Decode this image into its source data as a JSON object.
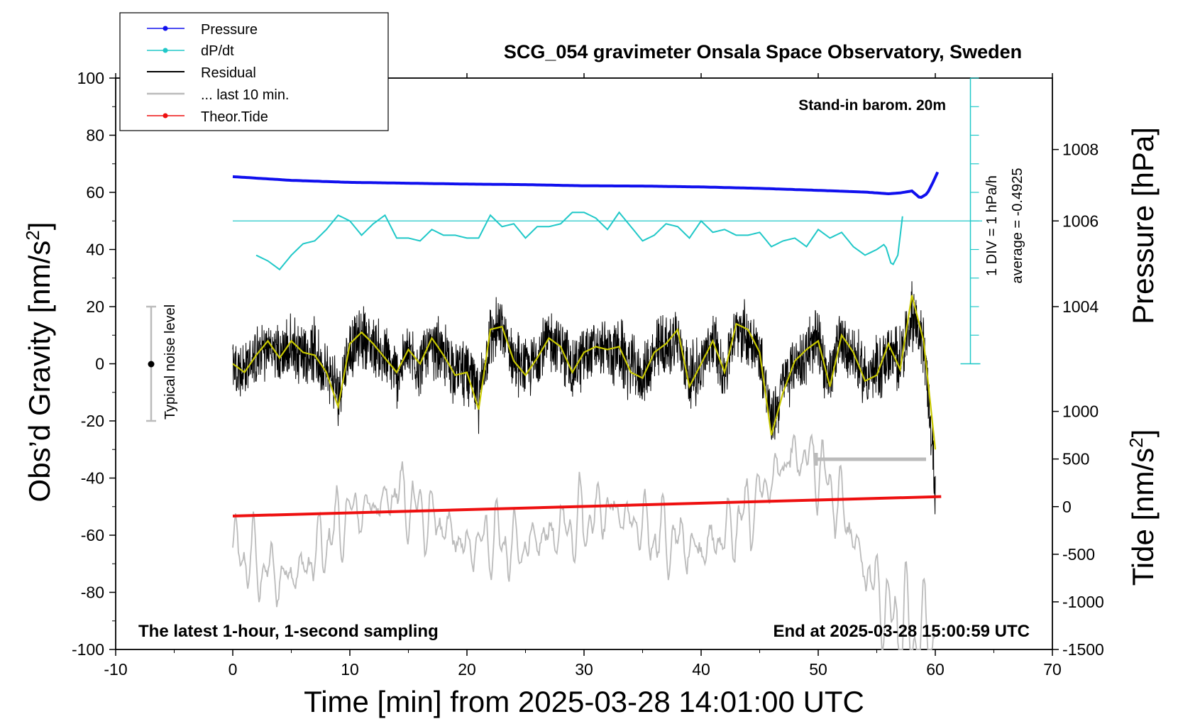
{
  "chart_data": {
    "type": "line",
    "title": "SCG_054 gravimeter Onsala Space Observatory, Sweden",
    "xlabel": "Time [min] from 2025-03-28 14:01:00 UTC",
    "ylabel_left": "Obs’d Gravity [nm/s²]",
    "ylabel_left_main": "Obs’d Gravity [nm/s",
    "ylabel_left_sup": "2",
    "ylabel_left_end": "]",
    "ylabel_pressure": "Pressure [hPa]",
    "ylabel_tide_main": "Tide [nm/s",
    "ylabel_tide_sup": "2",
    "ylabel_tide_end": "]",
    "xlim": [
      -10,
      70
    ],
    "ylim": [
      -100,
      100
    ],
    "xticks": [
      -10,
      0,
      10,
      20,
      30,
      40,
      50,
      60,
      70
    ],
    "yticks": [
      -100,
      -80,
      -60,
      -40,
      -20,
      0,
      20,
      40,
      60,
      80,
      100
    ],
    "pressure_ticks": [
      1004,
      1006,
      1008
    ],
    "pressure_ticks_gravity_pos": [
      20,
      50,
      75
    ],
    "tide_ticks": [
      -1500,
      -1000,
      -500,
      0,
      500,
      1000
    ],
    "tide_ticks_gravity_pos": [
      -100,
      -83.33,
      -66.67,
      -50,
      -33.33,
      -16.67
    ],
    "legend": {
      "position": "top-left",
      "entries": [
        {
          "label": "Pressure",
          "color": "#1010ee",
          "marker": true
        },
        {
          "label": "dP/dt",
          "color": "#20c8c8",
          "marker": true
        },
        {
          "label": "Residual",
          "color": "#000000",
          "marker": false
        },
        {
          "label": "... last 10 min.",
          "color": "#bbbbbb",
          "marker": false
        },
        {
          "label": "Theor.Tide",
          "color": "#ee1010",
          "marker": true
        }
      ]
    },
    "annotations": {
      "standin": "Stand-in barom. 20m",
      "latest": "The latest 1-hour, 1-second sampling",
      "end_at": "End at 2025-03-28 15:00:59 UTC",
      "noise": "Typical noise level",
      "div": "1 DIV = 1 hPa/h",
      "average": "average = -0.4925"
    },
    "series": [
      {
        "name": "Pressure",
        "color": "#1010ee",
        "x": [
          0,
          5,
          10,
          15,
          20,
          25,
          30,
          35,
          40,
          45,
          50,
          54,
          56,
          57,
          58,
          58.7,
          59.3,
          59.8,
          60.3
        ],
        "y": [
          65.5,
          64.2,
          63.5,
          63.2,
          62.9,
          62.7,
          62.3,
          62.2,
          61.9,
          61.4,
          60.7,
          60.1,
          59.5,
          59.8,
          60.5,
          58.0,
          59.5,
          63.5,
          68.0
        ]
      },
      {
        "name": "dP/dt",
        "color": "#20c8c8",
        "zero_line": 50,
        "x": [
          2,
          3,
          4,
          5,
          6,
          7,
          8,
          9,
          10,
          11,
          12,
          13,
          14,
          15,
          16,
          17,
          18,
          19,
          20,
          21,
          22,
          23,
          24,
          25,
          26,
          27,
          28,
          29,
          30,
          31,
          32,
          33,
          34,
          35,
          36,
          37,
          38,
          39,
          40,
          41,
          42,
          43,
          44,
          45,
          46,
          47,
          48,
          49,
          50,
          51,
          52,
          53,
          54,
          55,
          55.7,
          56.3,
          56.8,
          57.3
        ],
        "y": [
          38,
          36,
          33,
          38,
          42,
          43,
          47,
          52,
          50,
          45,
          49,
          52,
          44,
          44,
          43,
          47,
          45,
          45,
          44,
          44,
          52,
          48,
          49,
          44,
          48,
          48,
          49,
          53,
          53,
          51,
          47,
          53,
          48,
          43,
          45,
          49,
          48,
          44,
          50,
          46,
          47,
          45,
          45,
          46,
          41,
          43,
          44,
          41,
          47,
          44,
          46,
          41,
          38,
          40,
          42,
          34,
          38,
          55
        ]
      },
      {
        "name": "Residual",
        "color": "#000000",
        "x": [
          0,
          1,
          2,
          3,
          4,
          5,
          6,
          7,
          8,
          9,
          10,
          11,
          12,
          13,
          14,
          15,
          16,
          17,
          18,
          19,
          20,
          21,
          22,
          23,
          24,
          25,
          26,
          27,
          28,
          29,
          30,
          31,
          32,
          33,
          34,
          35,
          36,
          37,
          38,
          39,
          40,
          41,
          42,
          43,
          44,
          45,
          46,
          47,
          48,
          49,
          50,
          51,
          52,
          53,
          54,
          55,
          56,
          57,
          58,
          59,
          60
        ],
        "y": [
          0,
          -2,
          2,
          5,
          3,
          6,
          4,
          3,
          -2,
          -10,
          5,
          10,
          7,
          2,
          -3,
          4,
          0,
          6,
          2,
          -2,
          -2,
          -12,
          10,
          12,
          1,
          -3,
          2,
          8,
          6,
          -2,
          3,
          5,
          4,
          5,
          -2,
          -4,
          3,
          6,
          9,
          -6,
          0,
          7,
          -3,
          13,
          10,
          4,
          -20,
          -8,
          1,
          4,
          7,
          -5,
          8,
          3,
          -5,
          -3,
          4,
          0,
          18,
          8,
          -43
        ]
      },
      {
        "name": "Yellow smooth",
        "color": "#c8c800",
        "x": [
          0,
          1,
          2,
          3,
          4,
          5,
          6,
          7,
          8,
          9,
          10,
          11,
          12,
          13,
          14,
          15,
          16,
          17,
          18,
          19,
          20,
          21,
          22,
          23,
          24,
          25,
          26,
          27,
          28,
          29,
          30,
          31,
          32,
          33,
          34,
          35,
          36,
          37,
          38,
          39,
          40,
          41,
          42,
          43,
          44,
          45,
          46,
          47,
          48,
          49,
          50,
          51,
          52,
          53,
          54,
          55,
          56,
          57,
          58,
          59,
          60
        ],
        "y": [
          0,
          -3,
          3,
          8,
          2,
          8,
          4,
          3,
          -3,
          -15,
          7,
          11,
          7,
          2,
          -3,
          5,
          0,
          9,
          3,
          -4,
          -3,
          -16,
          12,
          13,
          1,
          -4,
          2,
          9,
          6,
          -3,
          4,
          6,
          5,
          6,
          -3,
          -5,
          4,
          7,
          12,
          -8,
          0,
          8,
          -3,
          14,
          12,
          4,
          -25,
          -10,
          1,
          5,
          8,
          -8,
          10,
          4,
          -6,
          -4,
          7,
          -2,
          24,
          8,
          -30
        ]
      },
      {
        "name": "... last 10 min.",
        "color": "#bbbbbb",
        "x": [
          0,
          2,
          4,
          6,
          8,
          10,
          12,
          14,
          16,
          18,
          20,
          22,
          24,
          26,
          28,
          30,
          32,
          34,
          36,
          38,
          40,
          42,
          44,
          46,
          48,
          50,
          52,
          54,
          56,
          58,
          60
        ],
        "y": [
          -65,
          -70,
          -75,
          -72,
          -62,
          -52,
          -50,
          -45,
          -52,
          -57,
          -65,
          -60,
          -65,
          -62,
          -58,
          -55,
          -50,
          -55,
          -60,
          -62,
          -65,
          -60,
          -52,
          -40,
          -32,
          -36,
          -50,
          -72,
          -88,
          -95,
          -97
        ]
      },
      {
        "name": "Theor.Tide",
        "color": "#ee1010",
        "x": [
          0,
          60.5
        ],
        "y": [
          -53.3,
          -46.5
        ]
      }
    ]
  }
}
